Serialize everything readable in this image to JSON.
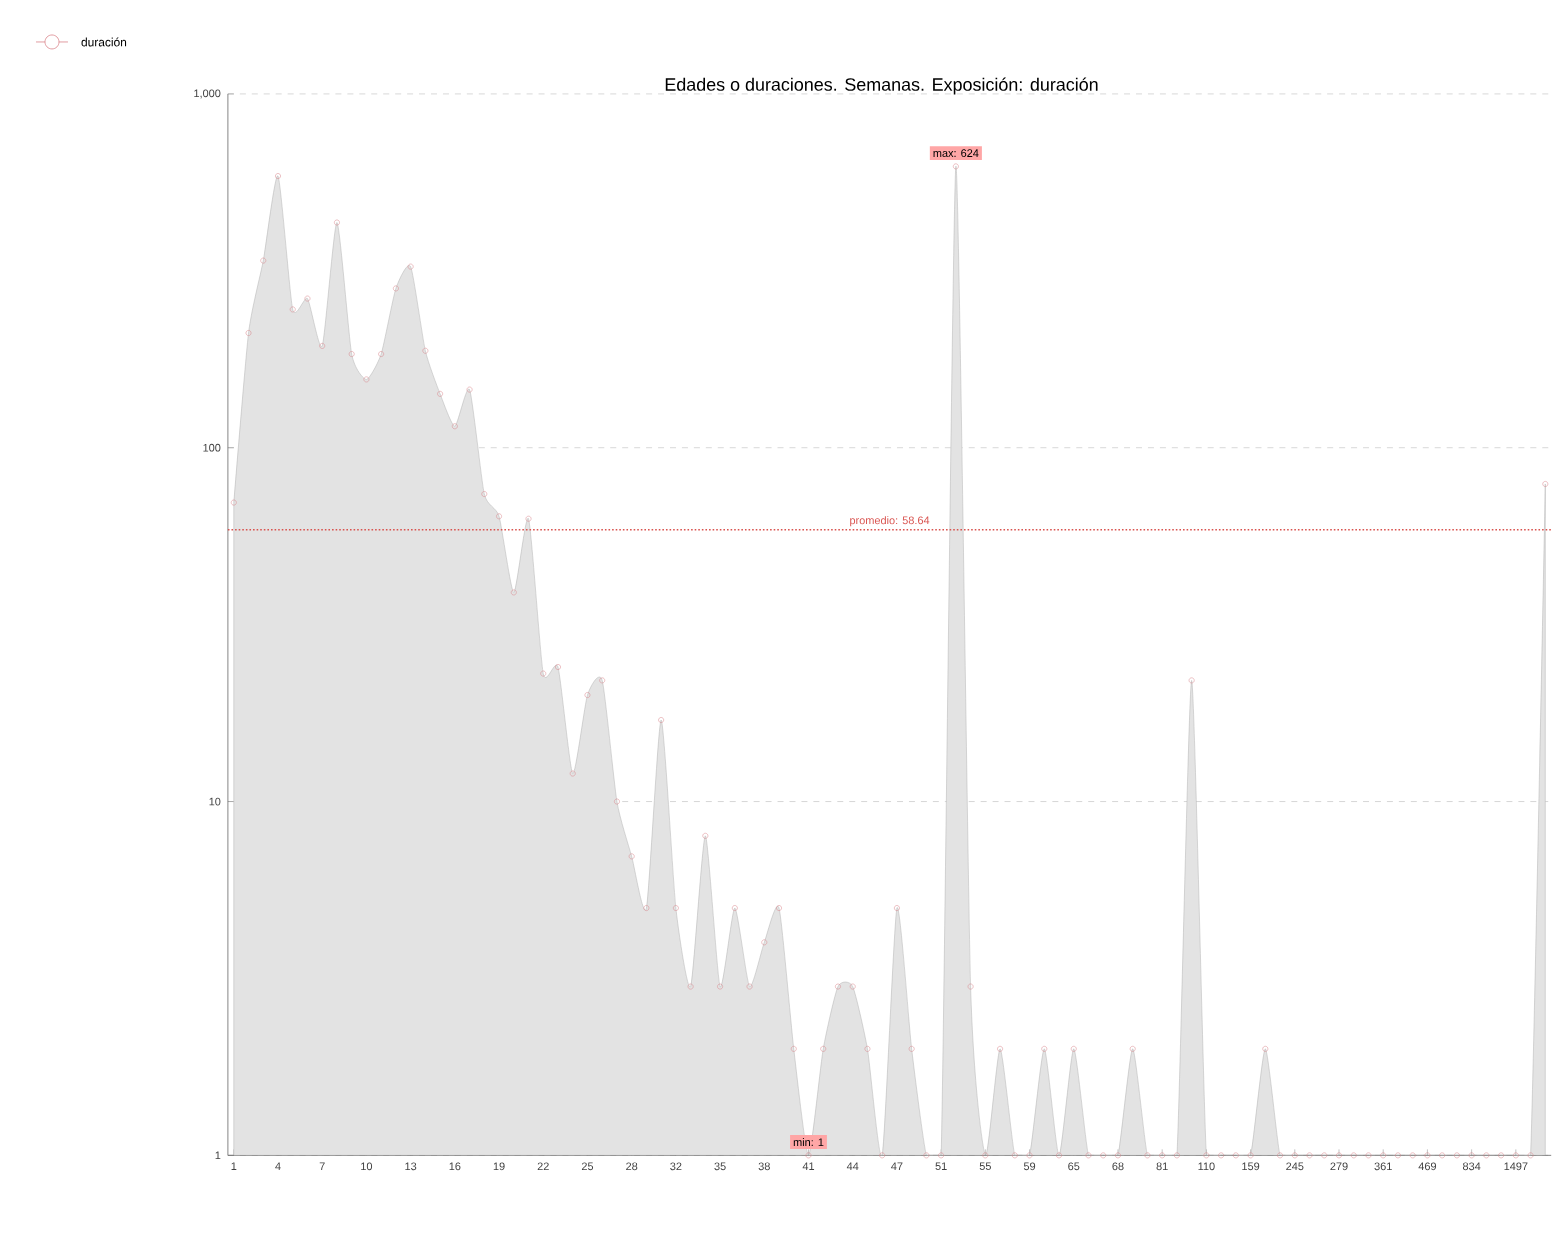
{
  "chart_data": {
    "type": "area",
    "title": "Edades o duraciones. Semanas. Exposición: duración",
    "categories": [
      "1",
      null,
      null,
      "4",
      null,
      null,
      "7",
      null,
      null,
      "10",
      null,
      null,
      "13",
      null,
      null,
      "16",
      null,
      null,
      "19",
      null,
      null,
      "22",
      null,
      null,
      "25",
      null,
      null,
      "28",
      null,
      null,
      "32",
      null,
      null,
      "35",
      null,
      null,
      "38",
      null,
      null,
      "41",
      null,
      null,
      "44",
      null,
      null,
      "47",
      null,
      null,
      "51",
      null,
      null,
      "55",
      null,
      null,
      "59",
      null,
      null,
      "65",
      null,
      null,
      "68",
      null,
      null,
      "81",
      null,
      null,
      "110",
      null,
      null,
      "159",
      null,
      null,
      "245",
      null,
      null,
      "279",
      null,
      null,
      "361",
      null,
      null,
      "469",
      null,
      null,
      "834",
      null,
      null,
      "1497",
      null,
      null
    ],
    "series": [
      {
        "name": "duración",
        "color": "#d9838a",
        "values": [
          70,
          211,
          338,
          586,
          246,
          264,
          194,
          433,
          184,
          156,
          184,
          282,
          325,
          188,
          142,
          115,
          146,
          74,
          64,
          39,
          63,
          23,
          24,
          12,
          20,
          22,
          10,
          7,
          5,
          17,
          5,
          3,
          8,
          3,
          5,
          3,
          4,
          5,
          2,
          1,
          2,
          3,
          3,
          2,
          1,
          5,
          2,
          1,
          1,
          624,
          3,
          1,
          2,
          1,
          1,
          2,
          1,
          2,
          1,
          1,
          1,
          2,
          1,
          1,
          1,
          22,
          1,
          1,
          1,
          1,
          2,
          1,
          1,
          1,
          1,
          1,
          1,
          1,
          1,
          1,
          1,
          1,
          1,
          1,
          1,
          1,
          1,
          1,
          1,
          79
        ]
      }
    ],
    "ylim": [
      1,
      1000
    ],
    "yticks": [
      1,
      10,
      100,
      {
        "value": 1000,
        "label": "1,000"
      }
    ],
    "log": true,
    "grid": "y",
    "legend": "top left",
    "marker": "circle",
    "ref_lines": [
      {
        "axis": "y",
        "value": 58.64,
        "label": "promedio: 58.64",
        "color": "#d9534f",
        "line_style": "dotted"
      }
    ],
    "annotations": [
      {
        "text": "max: 624",
        "y": 624
      },
      {
        "text": "min: 1",
        "x": "41",
        "y": 1
      }
    ]
  }
}
